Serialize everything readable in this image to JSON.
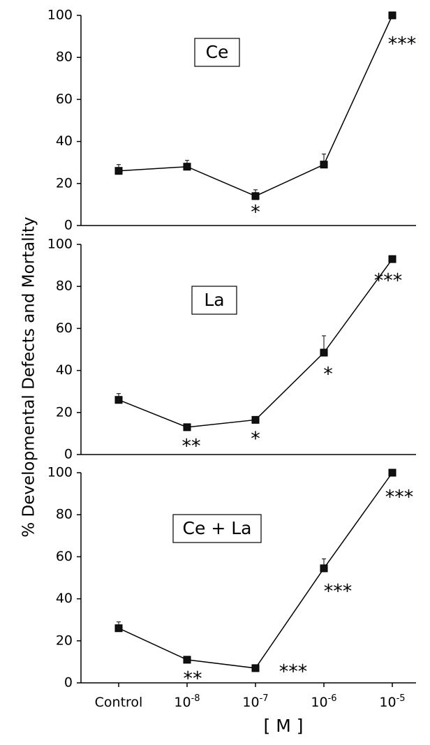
{
  "y_axis_label": "% Developmental Defects and Mortality",
  "x_axis_label": "[ M ]",
  "chart_data": [
    {
      "type": "line",
      "panel_label": "Ce",
      "categories": [
        "Control",
        "10-8",
        "10-7",
        "10-6",
        "10-5"
      ],
      "values": [
        26,
        28,
        14,
        29,
        100
      ],
      "errors": [
        3,
        3,
        3,
        5,
        0
      ],
      "significance": [
        "",
        "",
        "*",
        "",
        "***"
      ],
      "ylim": [
        0,
        100
      ],
      "yticks": [
        "0",
        "20",
        "40",
        "60",
        "80",
        "100"
      ]
    },
    {
      "type": "line",
      "panel_label": "La",
      "categories": [
        "Control",
        "10-8",
        "10-7",
        "10-6",
        "10-5"
      ],
      "values": [
        26,
        13,
        16.5,
        48.5,
        93
      ],
      "errors": [
        3,
        1,
        1,
        8,
        0
      ],
      "significance": [
        "",
        "**",
        "*",
        "*",
        "***"
      ],
      "ylim": [
        0,
        100
      ],
      "yticks": [
        "0",
        "20",
        "40",
        "60",
        "80",
        "100"
      ]
    },
    {
      "type": "line",
      "panel_label": "Ce + La",
      "categories": [
        "Control",
        "10-8",
        "10-7",
        "10-6",
        "10-5"
      ],
      "values": [
        26,
        11,
        7,
        54.5,
        100
      ],
      "errors": [
        3,
        1,
        1,
        4.5,
        0
      ],
      "significance": [
        "",
        "**",
        "***",
        "***",
        "***"
      ],
      "ylim": [
        0,
        100
      ],
      "yticks": [
        "0",
        "20",
        "40",
        "60",
        "80",
        "100"
      ]
    }
  ],
  "x_tick_labels": [
    {
      "base": "Control",
      "exp": ""
    },
    {
      "base": "10",
      "exp": "-8"
    },
    {
      "base": "10",
      "exp": "-7"
    },
    {
      "base": "10",
      "exp": "-6"
    },
    {
      "base": "10",
      "exp": "-5"
    }
  ]
}
